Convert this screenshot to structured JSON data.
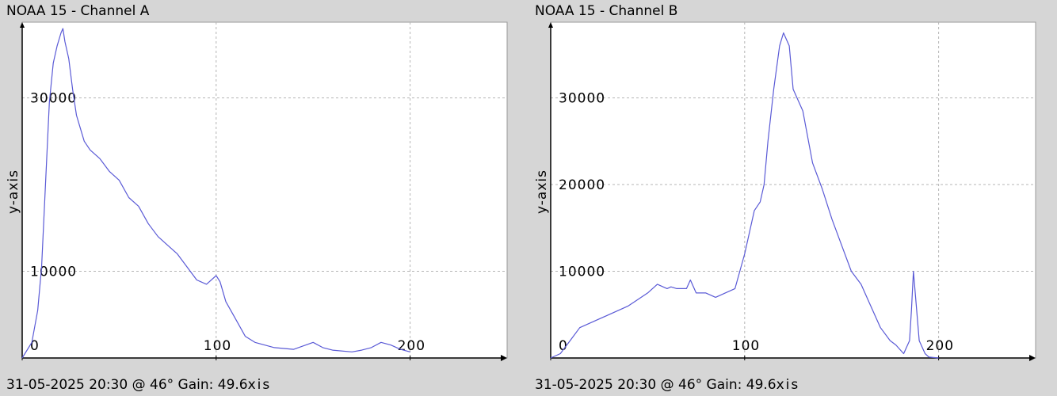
{
  "chart_data": [
    {
      "type": "line",
      "title": "NOAA 15 - Channel A",
      "footer": "31-05-2025 20:30 @ 46° Gain: 49.6",
      "xlabel": "xis",
      "ylabel": "y-axis",
      "xlim": [
        0,
        250
      ],
      "ylim": [
        0,
        38000
      ],
      "xticks": [
        0,
        100,
        200
      ],
      "yticks": [
        10000,
        30000
      ],
      "grid": true,
      "line_color": "#5a5ad6",
      "x": [
        0,
        5,
        8,
        10,
        12,
        14,
        16,
        18,
        20,
        21,
        22,
        24,
        26,
        28,
        30,
        32,
        35,
        40,
        45,
        50,
        55,
        60,
        65,
        70,
        75,
        80,
        85,
        90,
        95,
        100,
        102,
        105,
        110,
        115,
        120,
        130,
        140,
        150,
        155,
        160,
        170,
        175,
        180,
        185,
        190,
        195,
        200
      ],
      "y": [
        0,
        1800,
        5500,
        10500,
        20000,
        29500,
        34000,
        36000,
        37500,
        38000,
        36500,
        34500,
        31000,
        28000,
        26500,
        25000,
        24000,
        23000,
        21500,
        20500,
        18500,
        17500,
        15500,
        14000,
        13000,
        12000,
        10500,
        9000,
        8500,
        9500,
        8800,
        6500,
        4500,
        2500,
        1800,
        1200,
        1000,
        1800,
        1200,
        900,
        700,
        900,
        1200,
        1800,
        1500,
        1000,
        700
      ]
    },
    {
      "type": "line",
      "title": "NOAA 15 - Channel B",
      "footer": "31-05-2025 20:30 @ 46° Gain: 49.6",
      "xlabel": "xis",
      "ylabel": "y-axis",
      "xlim": [
        0,
        250
      ],
      "ylim": [
        0,
        38000
      ],
      "xticks": [
        0,
        100,
        200
      ],
      "yticks": [
        10000,
        20000,
        30000
      ],
      "grid": true,
      "line_color": "#5a5ad6",
      "x": [
        0,
        5,
        10,
        15,
        20,
        30,
        40,
        50,
        55,
        60,
        62,
        65,
        70,
        72,
        75,
        80,
        85,
        90,
        95,
        100,
        105,
        108,
        110,
        112,
        115,
        118,
        120,
        123,
        125,
        130,
        135,
        140,
        145,
        150,
        155,
        160,
        165,
        170,
        175,
        178,
        180,
        182,
        185,
        186,
        187,
        190,
        193,
        195,
        200
      ],
      "y": [
        0,
        500,
        2000,
        3500,
        4000,
        5000,
        6000,
        7500,
        8500,
        8000,
        8200,
        8000,
        8000,
        9000,
        7500,
        7500,
        7000,
        7500,
        8000,
        12000,
        17000,
        18000,
        20000,
        25000,
        31000,
        36000,
        37500,
        36000,
        31000,
        28500,
        22500,
        19500,
        16000,
        13000,
        10000,
        8500,
        6000,
        3500,
        2000,
        1500,
        1000,
        500,
        2000,
        5500,
        10000,
        2000,
        500,
        100,
        0
      ]
    }
  ]
}
